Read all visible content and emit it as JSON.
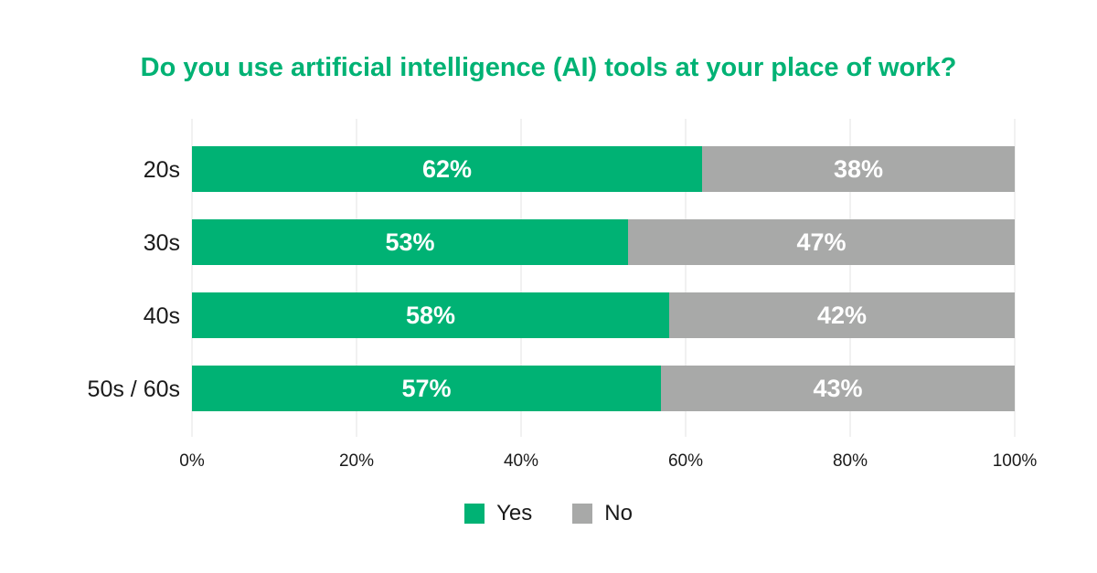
{
  "chart_data": {
    "type": "bar",
    "orientation": "horizontal",
    "stacked": true,
    "title": "Do you use artificial intelligence (AI) tools at your place of work?",
    "categories": [
      "20s",
      "30s",
      "40s",
      "50s / 60s"
    ],
    "series": [
      {
        "name": "Yes",
        "values": [
          62,
          53,
          58,
          57
        ],
        "color": "#00b274"
      },
      {
        "name": "No",
        "values": [
          38,
          47,
          42,
          43
        ],
        "color": "#a8a9a8"
      }
    ],
    "data_labels": [
      [
        "62%",
        "53%",
        "58%",
        "57%"
      ],
      [
        "38%",
        "47%",
        "42%",
        "43%"
      ]
    ],
    "xlim": [
      0,
      100
    ],
    "x_ticks": [
      "0%",
      "20%",
      "40%",
      "60%",
      "80%",
      "100%"
    ],
    "xlabel": "",
    "ylabel": "",
    "grid": "vertical",
    "legend_position": "bottom-center",
    "colors": {
      "title": "#00b274",
      "yes": "#00b274",
      "no": "#a8a9a8",
      "grid": "#e3e3e3",
      "text": "#1a1a1a",
      "bar_label": "#ffffff"
    }
  }
}
